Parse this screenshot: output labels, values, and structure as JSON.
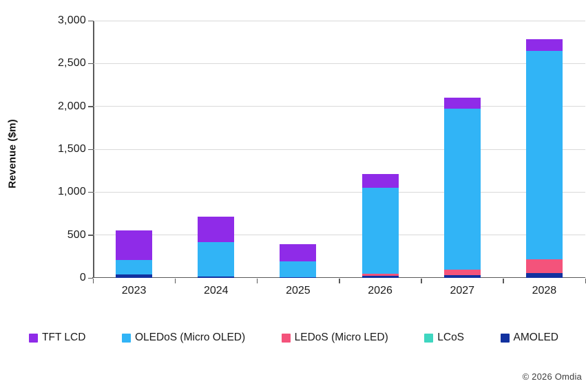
{
  "chart_data": {
    "type": "bar",
    "stacked": true,
    "title": "",
    "xlabel": "",
    "ylabel": "Revenue ($m)",
    "categories": [
      "2023",
      "2024",
      "2025",
      "2026",
      "2027",
      "2028"
    ],
    "series": [
      {
        "name": "TFT LCD",
        "color": "#8F2BE8",
        "values": [
          340,
          295,
          195,
          160,
          130,
          130
        ]
      },
      {
        "name": "OLEDoS (Micro OLED)",
        "color": "#31B4F6",
        "values": [
          170,
          405,
          185,
          1000,
          1870,
          2430
        ]
      },
      {
        "name": "LEDoS (Micro LED)",
        "color": "#F4537B",
        "values": [
          0,
          0,
          0,
          25,
          65,
          165
        ]
      },
      {
        "name": "LCoS",
        "color": "#3FD6C0",
        "values": [
          0,
          0,
          0,
          0,
          0,
          0
        ]
      },
      {
        "name": "AMOLED",
        "color": "#12319F",
        "values": [
          40,
          15,
          10,
          25,
          35,
          55
        ]
      }
    ],
    "stack_order_bottom_to_top": [
      "AMOLED",
      "LCoS",
      "LEDoS (Micro LED)",
      "OLEDoS (Micro OLED)",
      "TFT LCD"
    ],
    "ylim": [
      0,
      3000
    ],
    "ytick_step": 500,
    "ytick_labels": [
      "0",
      "500",
      "1,000",
      "1,500",
      "2,000",
      "2,500",
      "3,000"
    ],
    "grid": true,
    "legend_position": "bottom",
    "axis_color": "#595959",
    "gridline_color": "#d9d9d9"
  },
  "footer": {
    "copyright": "© 2026 Omdia"
  }
}
